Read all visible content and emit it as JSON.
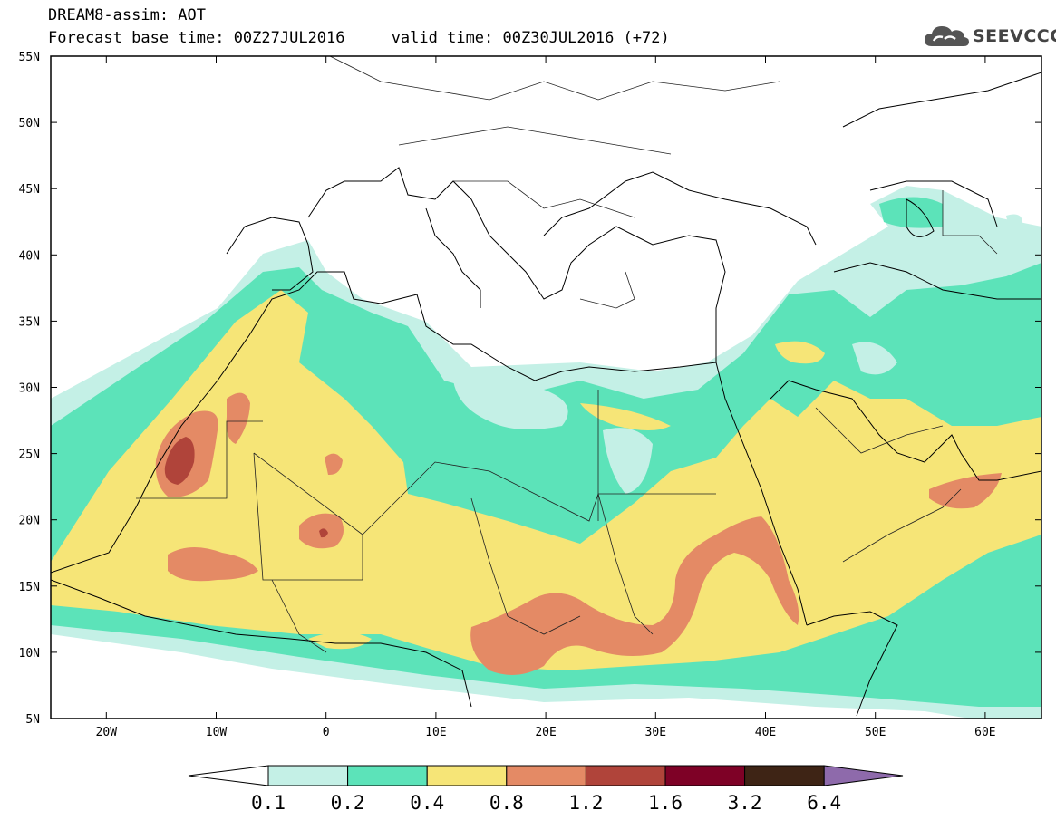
{
  "header": {
    "line1": "DREAM8-assim: AOT",
    "line2": "Forecast base time: 00Z27JUL2016     valid time: 00Z30JUL2016 (+72)"
  },
  "logo": {
    "text": "SEEVCCC",
    "icon": "cloud-icon"
  },
  "map": {
    "lat_labels": [
      "55N",
      "50N",
      "45N",
      "40N",
      "35N",
      "30N",
      "25N",
      "20N",
      "15N",
      "10N",
      "5N"
    ],
    "lon_labels": [
      "20W",
      "10W",
      "0",
      "10E",
      "20E",
      "30E",
      "40E",
      "50E",
      "60E"
    ]
  },
  "colorbar": {
    "labels": [
      "0.1",
      "0.2",
      "0.4",
      "0.8",
      "1.2",
      "1.6",
      "3.2",
      "6.4"
    ],
    "colors": {
      "below": "#ffffff",
      "c1": "#c4f0e6",
      "c2": "#5ce3b9",
      "c3": "#f6e577",
      "c4": "#e48a65",
      "c5": "#b0443a",
      "c6": "#7e0126",
      "c7": "#3e2415",
      "above": "#8e6aab"
    }
  }
}
